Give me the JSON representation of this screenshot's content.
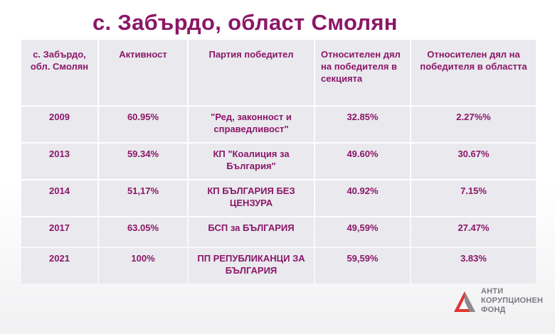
{
  "title": "с. Забърдо, област Смолян",
  "table": {
    "headers": [
      "с. Забърдо, обл. Смолян",
      "Активност",
      "Партия победител",
      "Относителен дял на победителя в секцията",
      "Относителен дял на победителя в областта"
    ],
    "rows": [
      {
        "year": "2009",
        "turnout": "60.95%",
        "party": "\"Ред, законност и справедливост\"",
        "share_section": "32.85%",
        "share_region": "2.27%%"
      },
      {
        "year": "2013",
        "turnout": "59.34%",
        "party": "КП \"Коалиция за България\"",
        "share_section": "49.60%",
        "share_region": "30.67%"
      },
      {
        "year": "2014",
        "turnout": "51,17%",
        "party": "КП БЪЛГАРИЯ БЕЗ ЦЕНЗУРА",
        "share_section": "40.92%",
        "share_region": "7.15%"
      },
      {
        "year": "2017",
        "turnout": "63.05%",
        "party": "БСП за БЪЛГАРИЯ",
        "share_section": "49,59%",
        "share_region": "27.47%"
      },
      {
        "year": "2021",
        "turnout": "100%",
        "party": "ПП РЕПУБЛИКАНЦИ ЗА БЪЛГАРИЯ",
        "share_section": "59,59%",
        "share_region": "3.83%"
      }
    ]
  },
  "logo": {
    "line1": "АНТИ",
    "line2": "КОРУПЦИОНЕН",
    "line3": "ФОНД",
    "icon": "triangle-logo-icon",
    "colors": {
      "red": "#e2342f",
      "gray": "#8a8a90"
    }
  },
  "colors": {
    "title": "#8b1768",
    "cell_bg": "#e9e9ee"
  }
}
